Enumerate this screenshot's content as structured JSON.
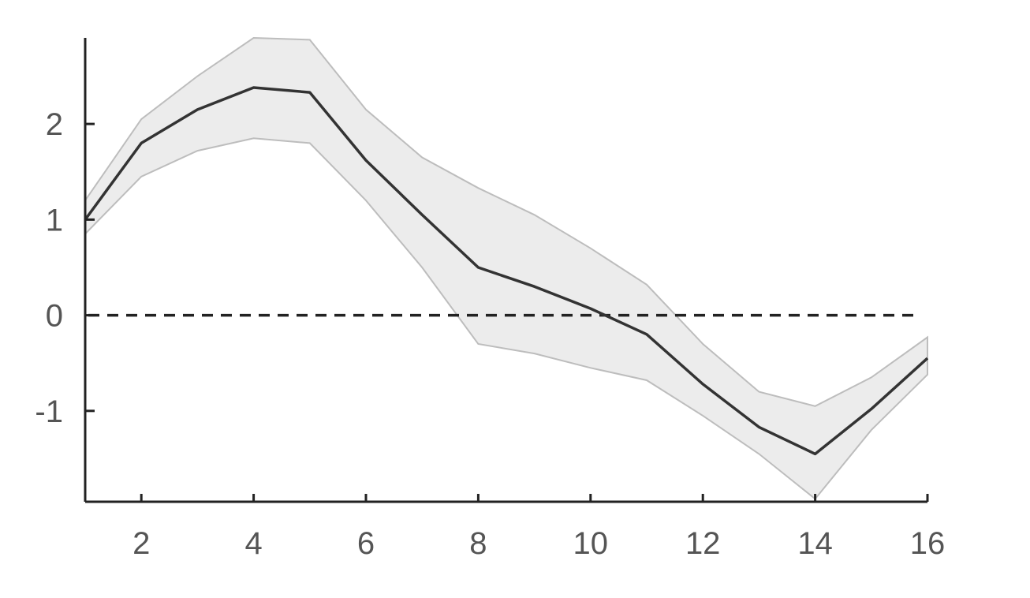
{
  "chart_data": {
    "type": "line",
    "title": "",
    "xlabel": "",
    "ylabel": "",
    "xlim": [
      1,
      16
    ],
    "ylim": [
      -1.95,
      2.9
    ],
    "x_ticks": [
      2,
      4,
      6,
      8,
      10,
      12,
      14,
      16
    ],
    "x_tick_labels": [
      "2",
      "4",
      "6",
      "8",
      "10",
      "12",
      "14",
      "16"
    ],
    "y_ticks": [
      2,
      1,
      0,
      -1
    ],
    "y_tick_labels": [
      "2",
      "1",
      "0",
      "-1"
    ],
    "grid": false,
    "reference_line": {
      "y": 0,
      "style": "dashed"
    },
    "x": [
      1,
      2,
      3,
      4,
      5,
      6,
      7,
      8,
      9,
      10,
      11,
      12,
      13,
      14,
      15,
      16
    ],
    "series": [
      {
        "values": [
          1.0,
          1.8,
          2.15,
          2.38,
          2.33,
          1.62,
          1.05,
          0.5,
          0.3,
          0.07,
          -0.2,
          -0.72,
          -1.17,
          -1.45,
          -0.98,
          -0.45
        ],
        "lower": [
          0.85,
          1.45,
          1.72,
          1.85,
          1.8,
          1.2,
          0.5,
          -0.3,
          -0.4,
          -0.55,
          -0.68,
          -1.05,
          -1.45,
          -1.92,
          -1.2,
          -0.62
        ],
        "upper": [
          1.2,
          2.05,
          2.5,
          2.9,
          2.88,
          2.15,
          1.65,
          1.33,
          1.05,
          0.7,
          0.32,
          -0.3,
          -0.8,
          -0.95,
          -0.65,
          -0.23
        ]
      }
    ],
    "colors": {
      "line": "#333333",
      "band_fill": "#ececec",
      "band_edge": "#bdbdbd",
      "axis": "#222222",
      "tick_label": "#555555"
    }
  }
}
